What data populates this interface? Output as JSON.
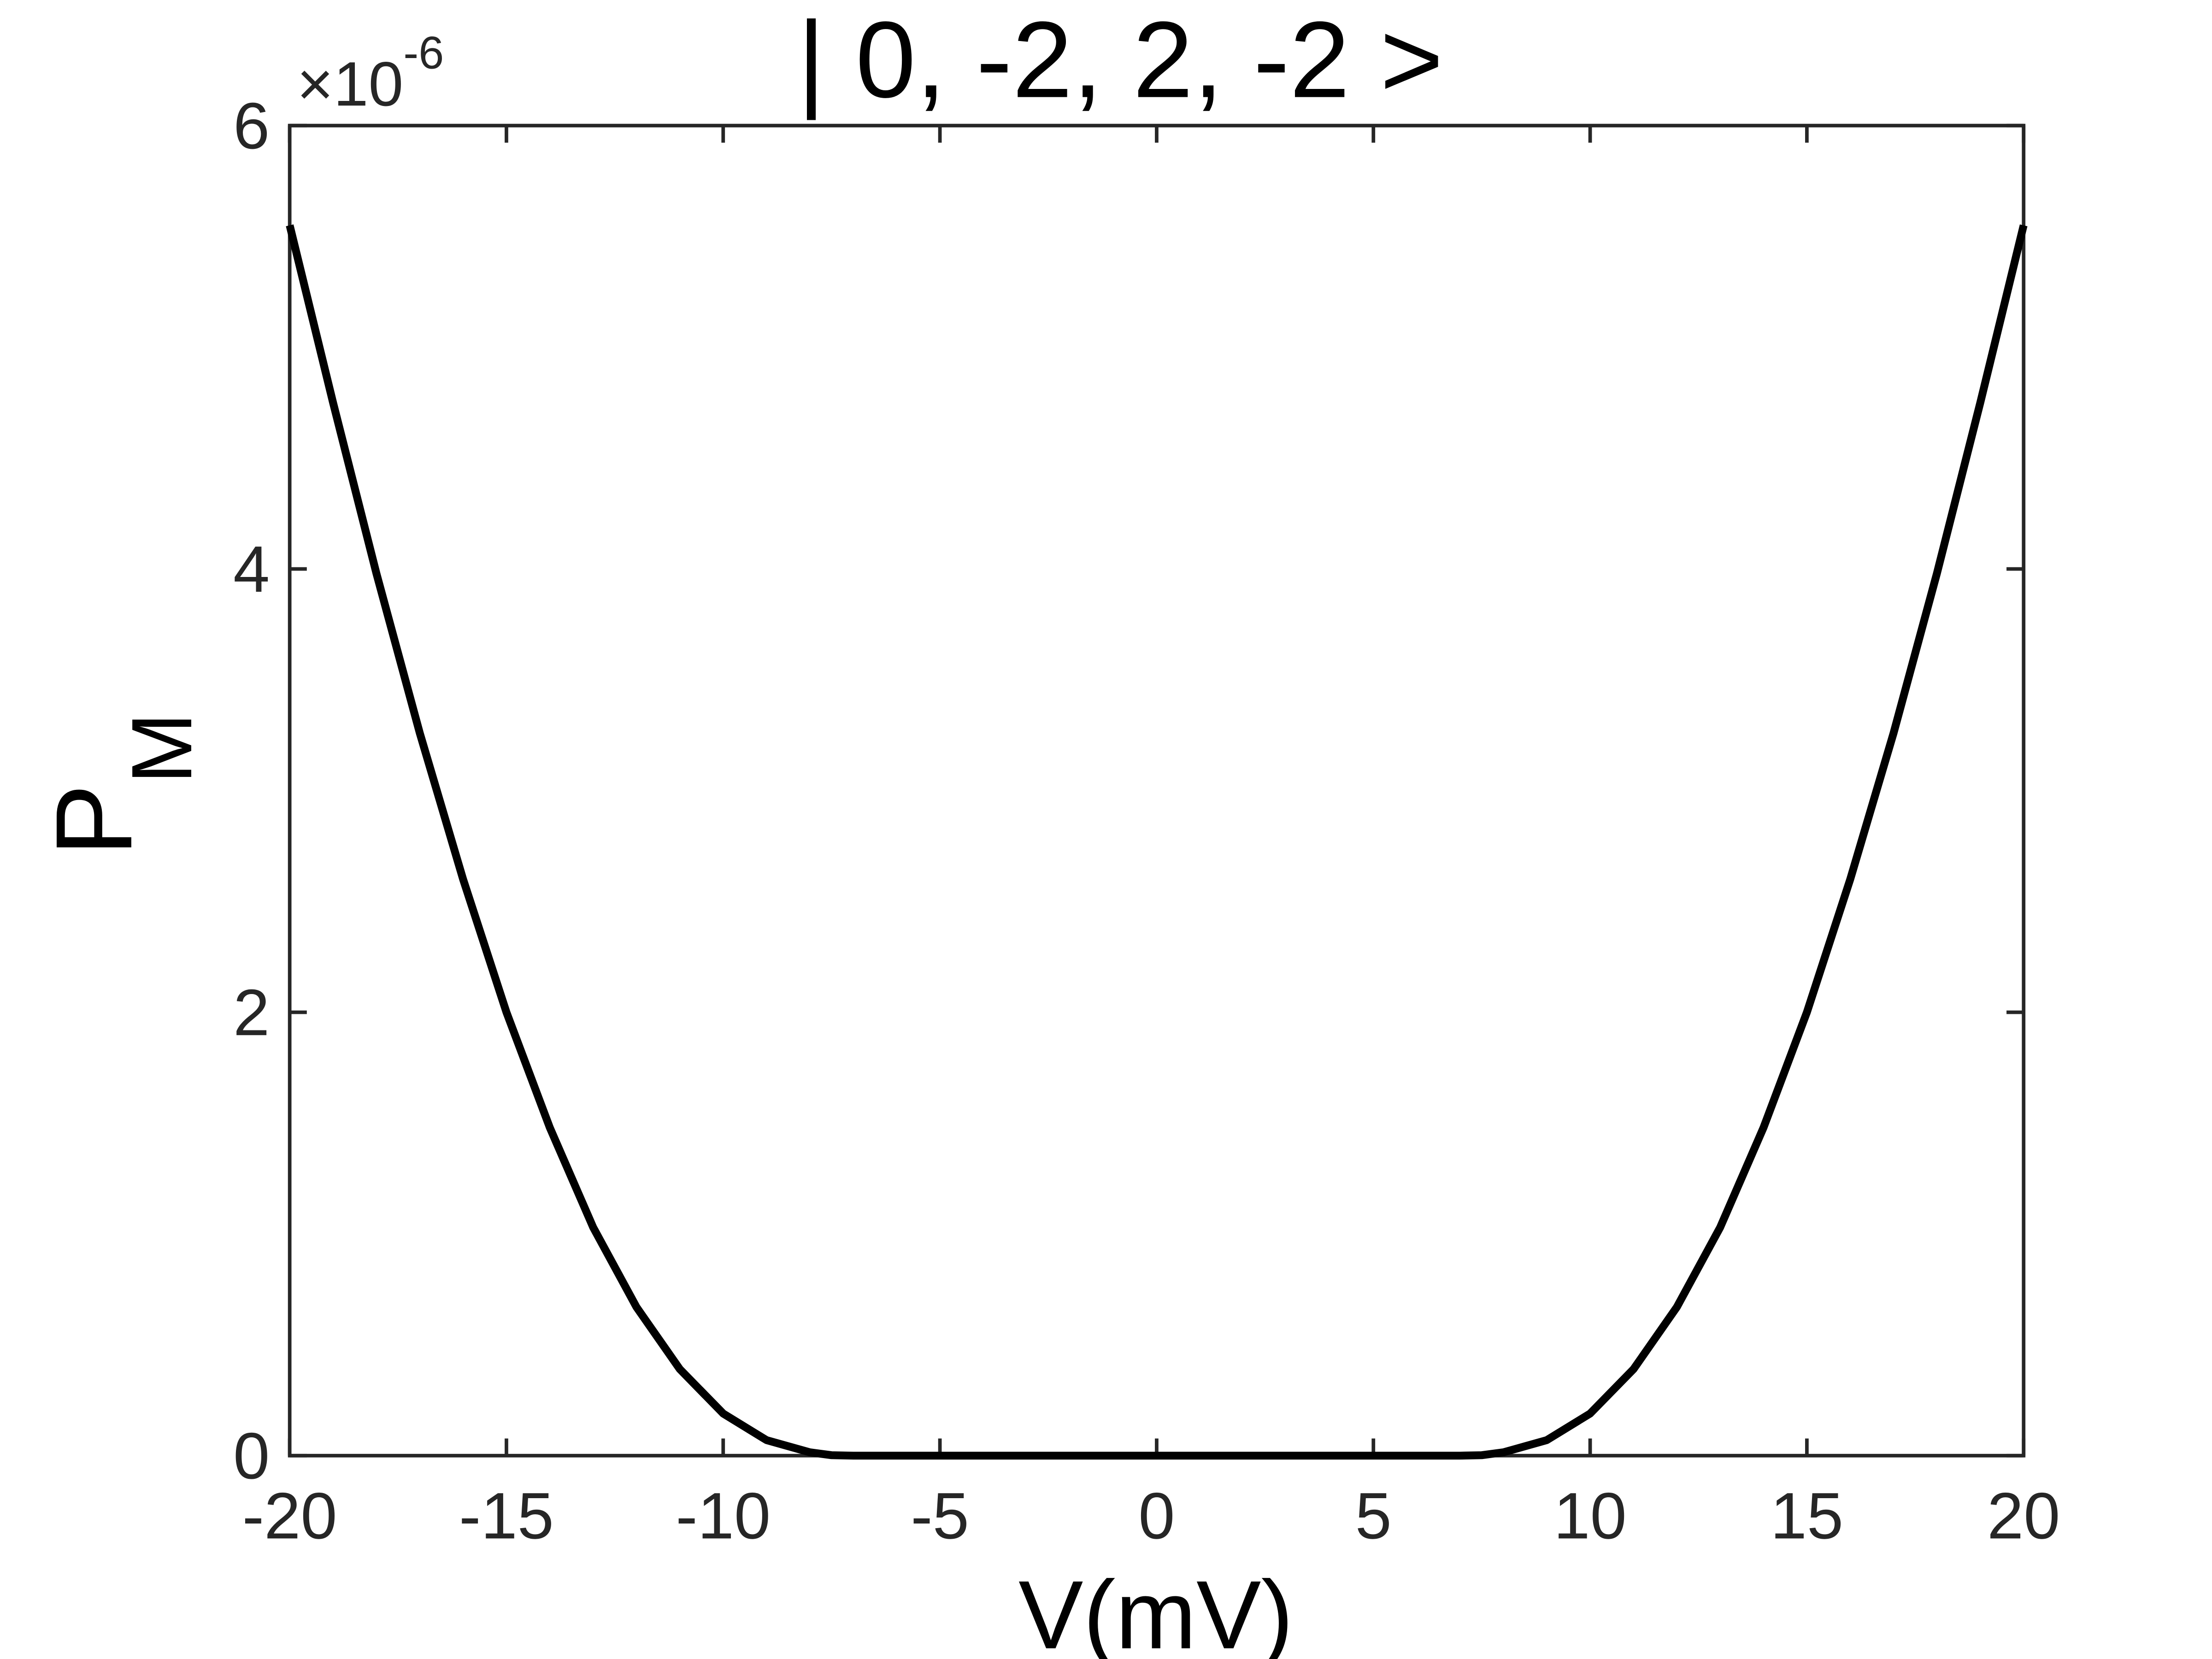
{
  "chart_data": {
    "type": "line",
    "title": "| 0, -2, 2, -2 >",
    "xlabel": "V(mV)",
    "ylabel": {
      "main": "P",
      "sub": "M"
    },
    "y_multiplier": {
      "base": "×10",
      "exponent": -6
    },
    "x": [
      -20,
      -19,
      -18,
      -17,
      -16,
      -15,
      -14,
      -13,
      -12,
      -11,
      -10,
      -9,
      -8,
      -7.5,
      -7,
      0,
      7,
      7.5,
      8,
      9,
      10,
      11,
      12,
      13,
      14,
      15,
      16,
      17,
      18,
      19,
      20
    ],
    "series": [
      {
        "name": "P_M",
        "color": "#000000",
        "values": [
          5.55,
          4.75,
          3.98,
          3.26,
          2.6,
          2.0,
          1.48,
          1.03,
          0.67,
          0.39,
          0.19,
          0.07,
          0.015,
          0.002,
          0,
          0,
          0,
          0.002,
          0.015,
          0.07,
          0.19,
          0.39,
          0.67,
          1.03,
          1.48,
          2.0,
          2.6,
          3.26,
          3.98,
          4.75,
          5.55
        ]
      }
    ],
    "xlim": [
      -20,
      20
    ],
    "ylim": [
      0,
      6
    ],
    "xticks": [
      -20,
      -15,
      -10,
      -5,
      0,
      5,
      10,
      15,
      20
    ],
    "yticks": [
      0,
      2,
      4,
      6
    ]
  }
}
